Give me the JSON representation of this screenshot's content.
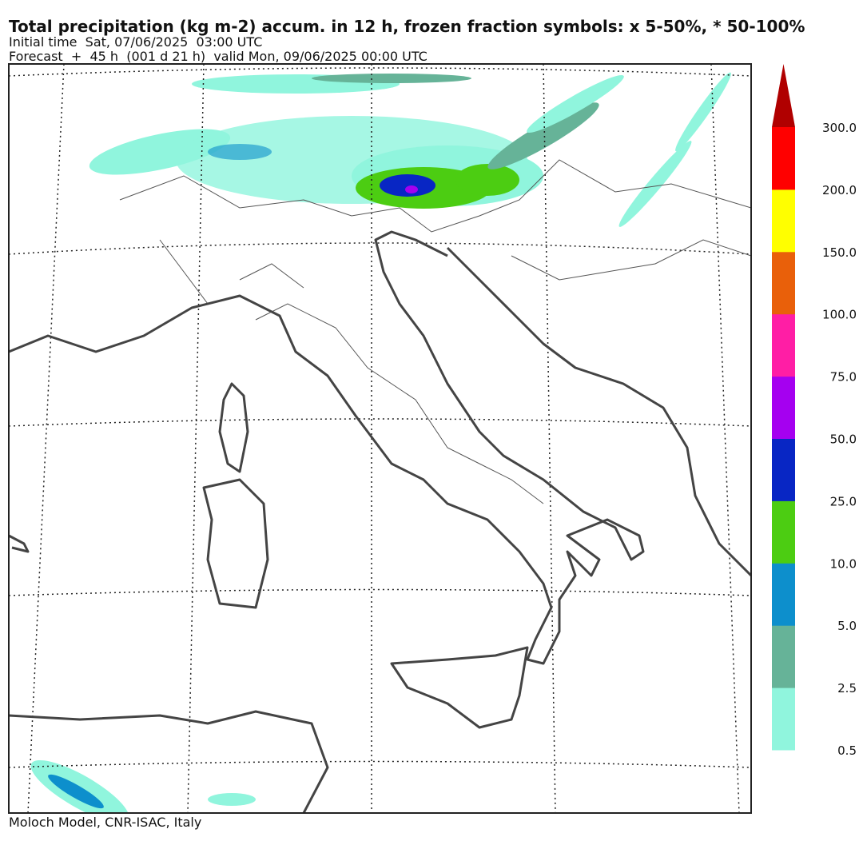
{
  "header": {
    "title": "Total precipitation (kg m-2) accum. in 12 h, frozen fraction symbols: x 5-50%, * 50-100%",
    "initial": "Initial time  Sat, 07/06/2025  03:00 UTC",
    "forecast": "Forecast  +  45 h  (001 d 21 h)  valid Mon, 09/06/2025 00:00 UTC"
  },
  "legend": {
    "labels": [
      "0.5",
      "2.5",
      "5.0",
      "10.0",
      "25.0",
      "50.0",
      "75.0",
      "100.0",
      "150.0",
      "200.0",
      "300.0"
    ],
    "colors": [
      "#90f5dd",
      "#66b398",
      "#0d8fcc",
      "#4ccd12",
      "#0826c4",
      "#a500f0",
      "#ff1ea5",
      "#e9600a",
      "#ffff00",
      "#ff0000"
    ],
    "extend_color": "#b00000"
  },
  "footer": "Moloch Model, CNR-ISAC, Italy"
}
